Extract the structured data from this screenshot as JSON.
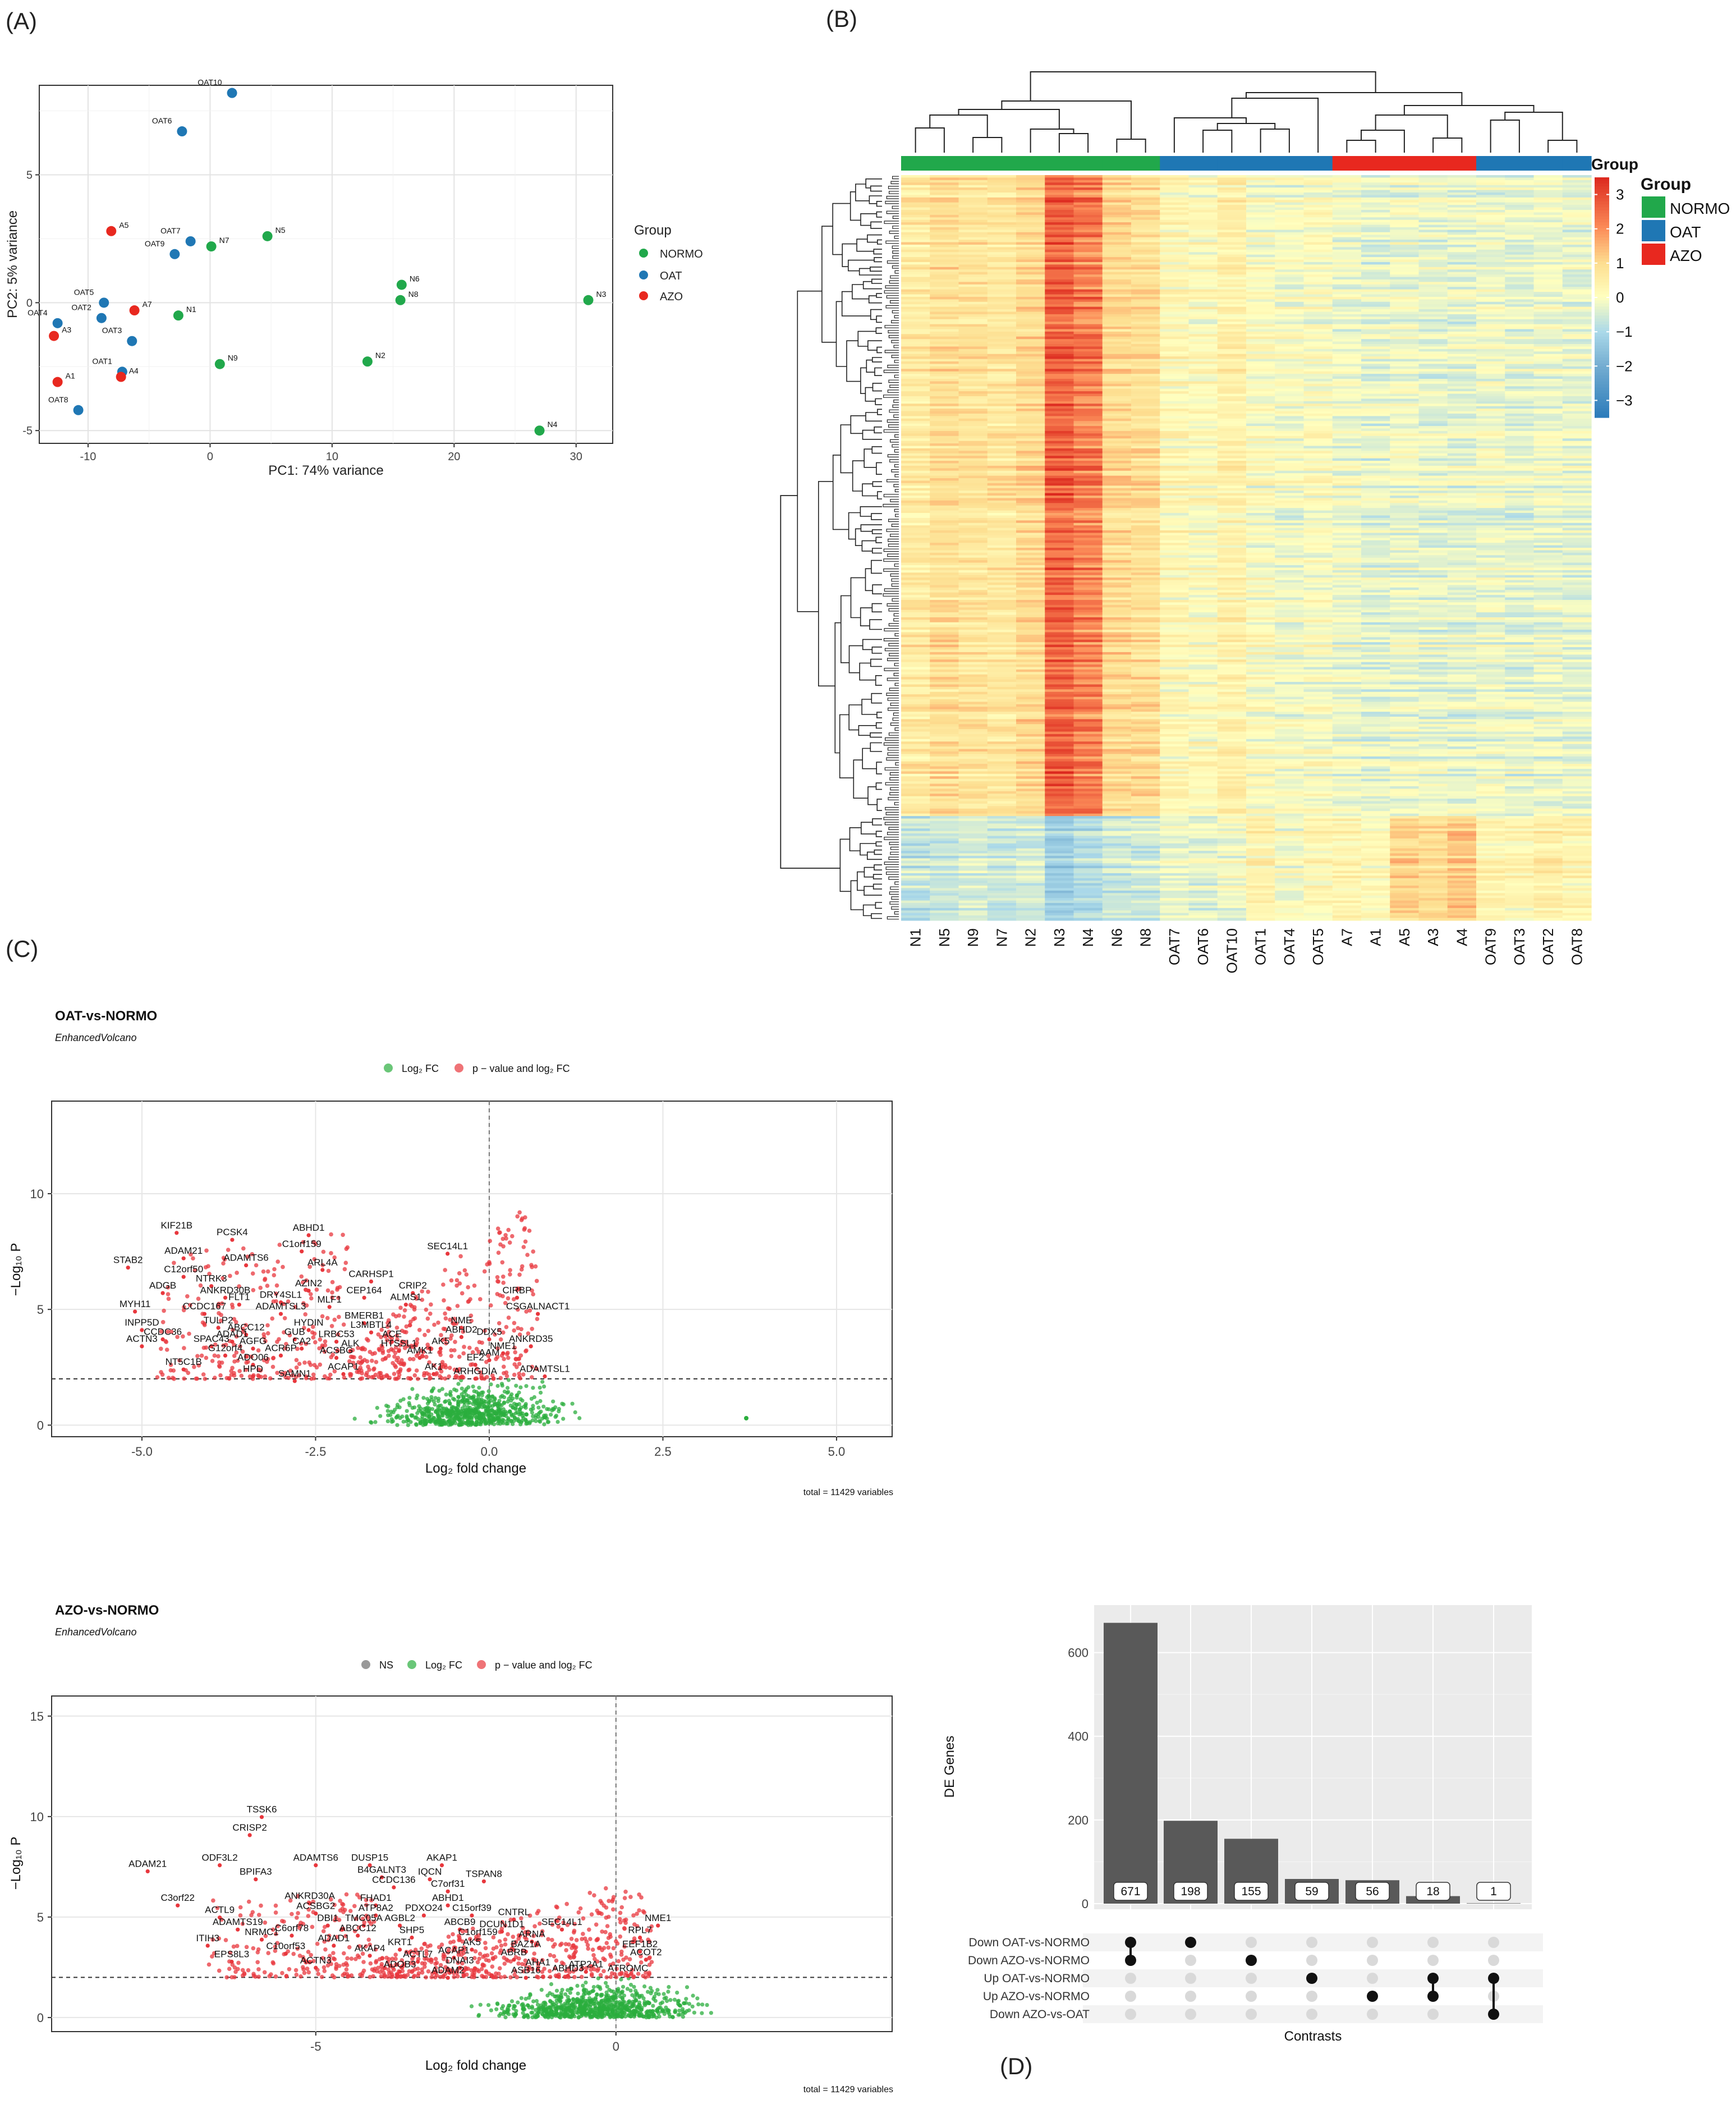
{
  "panel_labels": [
    "(A)",
    "(B)",
    "(C)",
    "(D)"
  ],
  "colors": {
    "normo": "#21A84B",
    "oat": "#1F77B4",
    "azo": "#E8281F",
    "panel_bg": "#FFFFFF",
    "upset_bg": "#EBEBEB",
    "bar": "#595959",
    "ns": "#999999",
    "logfc": "#2BAE3E",
    "pfc": "#E8373D"
  },
  "chart_data": [
    {
      "id": "pca",
      "type": "scatter",
      "xlabel": "PC1: 74% variance",
      "ylabel": "PC2: 5% variance",
      "xlim": [
        -14,
        33
      ],
      "ylim": [
        -5.5,
        8.5
      ],
      "xticks": [
        -10,
        0,
        10,
        20,
        30
      ],
      "yticks": [
        -5,
        0,
        5
      ],
      "legend": {
        "title": "Group",
        "entries": [
          "NORMO",
          "OAT",
          "AZO"
        ],
        "placement": "right"
      },
      "points": [
        {
          "label": "OAT10",
          "x": 1.8,
          "y": 8.2,
          "group": "OAT"
        },
        {
          "label": "OAT6",
          "x": -2.3,
          "y": 6.7,
          "group": "OAT"
        },
        {
          "label": "A5",
          "x": -8.1,
          "y": 2.8,
          "group": "AZO"
        },
        {
          "label": "OAT7",
          "x": -1.6,
          "y": 2.4,
          "group": "OAT"
        },
        {
          "label": "N7",
          "x": 0.1,
          "y": 2.2,
          "group": "NORMO"
        },
        {
          "label": "OAT9",
          "x": -2.9,
          "y": 1.9,
          "group": "OAT"
        },
        {
          "label": "N5",
          "x": 4.7,
          "y": 2.6,
          "group": "NORMO"
        },
        {
          "label": "OAT5",
          "x": -8.7,
          "y": 0.0,
          "group": "OAT"
        },
        {
          "label": "A7",
          "x": -6.2,
          "y": -0.3,
          "group": "AZO"
        },
        {
          "label": "N1",
          "x": -2.6,
          "y": -0.5,
          "group": "NORMO"
        },
        {
          "label": "OAT4",
          "x": -12.5,
          "y": -0.8,
          "group": "OAT"
        },
        {
          "label": "OAT2",
          "x": -8.9,
          "y": -0.6,
          "group": "OAT"
        },
        {
          "label": "A3",
          "x": -12.8,
          "y": -1.3,
          "group": "AZO"
        },
        {
          "label": "OAT3",
          "x": -6.4,
          "y": -1.5,
          "group": "OAT"
        },
        {
          "label": "N9",
          "x": 0.8,
          "y": -2.4,
          "group": "NORMO"
        },
        {
          "label": "OAT1",
          "x": -7.2,
          "y": -2.7,
          "group": "OAT"
        },
        {
          "label": "A4",
          "x": -7.3,
          "y": -2.9,
          "group": "AZO"
        },
        {
          "label": "A1",
          "x": -12.5,
          "y": -3.1,
          "group": "AZO"
        },
        {
          "label": "OAT8",
          "x": -10.8,
          "y": -4.2,
          "group": "OAT"
        },
        {
          "label": "N6",
          "x": 15.7,
          "y": 0.7,
          "group": "NORMO"
        },
        {
          "label": "N8",
          "x": 15.6,
          "y": 0.1,
          "group": "NORMO"
        },
        {
          "label": "N3",
          "x": 31.0,
          "y": 0.1,
          "group": "NORMO"
        },
        {
          "label": "N2",
          "x": 12.9,
          "y": -2.3,
          "group": "NORMO"
        },
        {
          "label": "N4",
          "x": 27.0,
          "y": -5.0,
          "group": "NORMO"
        }
      ]
    },
    {
      "id": "heatmap",
      "type": "heatmap",
      "columns": [
        "N1",
        "N5",
        "N9",
        "N7",
        "N2",
        "N3",
        "N4",
        "N6",
        "N8",
        "OAT7",
        "OAT6",
        "OAT10",
        "OAT1",
        "OAT4",
        "OAT5",
        "A7",
        "A1",
        "A5",
        "A3",
        "A4",
        "OAT9",
        "OAT3",
        "OAT2",
        "OAT8"
      ],
      "column_groups": [
        "NORMO",
        "NORMO",
        "NORMO",
        "NORMO",
        "NORMO",
        "NORMO",
        "NORMO",
        "NORMO",
        "NORMO",
        "OAT",
        "OAT",
        "OAT",
        "OAT",
        "OAT",
        "OAT",
        "AZO",
        "AZO",
        "AZO",
        "AZO",
        "AZO",
        "OAT",
        "OAT",
        "OAT",
        "OAT"
      ],
      "annotation_title": "Group",
      "legend_title": "Group",
      "legend_entries": [
        "NORMO",
        "OAT",
        "AZO"
      ],
      "color_scale": {
        "min": -3.5,
        "max": 3.5,
        "ticks": [
          3,
          2,
          1,
          0,
          -1,
          -2,
          -3
        ]
      },
      "column_mean_z": [
        0.6,
        0.9,
        0.8,
        0.7,
        1.0,
        2.6,
        2.2,
        1.0,
        0.9,
        0.2,
        0.1,
        0.4,
        0.0,
        -0.1,
        0.0,
        -0.2,
        -0.3,
        -0.2,
        -0.3,
        -0.3,
        -0.2,
        -0.3,
        -0.2,
        -0.3
      ],
      "lower_block_z": [
        -0.7,
        -0.6,
        -0.5,
        -0.6,
        -0.5,
        -1.2,
        -0.9,
        -0.6,
        -0.6,
        -0.2,
        -0.3,
        -0.1,
        0.4,
        -0.1,
        0.2,
        0.3,
        0.2,
        1.1,
        1.0,
        1.3,
        0.4,
        0.3,
        0.5,
        0.3
      ]
    },
    {
      "id": "volcano-oat",
      "type": "scatter",
      "title": "OAT-vs-NORMO",
      "subtitle": "EnhancedVolcano",
      "xlabel": "Log₂ fold change",
      "ylabel": "−Log₁₀ P",
      "xlim": [
        -6.3,
        5.8
      ],
      "ylim": [
        -0.5,
        14
      ],
      "xticks": [
        -5.0,
        -2.5,
        0.0,
        2.5,
        5.0
      ],
      "xtick_labels": [
        "-5.0",
        "-2.5",
        "0.0",
        "2.5",
        "5.0"
      ],
      "yticks": [
        0,
        5,
        10
      ],
      "vline": 0,
      "hline": 2,
      "legend": [
        "Log₂ FC",
        "p − value and log₂ FC"
      ],
      "caption": "total = 11429 variables",
      "outlier": {
        "x": 3.7,
        "y": 0.3
      },
      "gene_labels": [
        {
          "t": "KIF21B",
          "x": -4.5,
          "y": 8.5
        },
        {
          "t": "PCSK4",
          "x": -3.7,
          "y": 8.2
        },
        {
          "t": "ABHD1",
          "x": -2.6,
          "y": 8.4
        },
        {
          "t": "C1orf159",
          "x": -2.7,
          "y": 7.7
        },
        {
          "t": "SEC14L1",
          "x": -0.6,
          "y": 7.6
        },
        {
          "t": "ADAM21",
          "x": -4.4,
          "y": 7.4
        },
        {
          "t": "STAB2",
          "x": -5.2,
          "y": 7.0
        },
        {
          "t": "ADAMTS6",
          "x": -3.5,
          "y": 7.1
        },
        {
          "t": "ARL4A",
          "x": -2.4,
          "y": 6.9
        },
        {
          "t": "C12orf50",
          "x": -4.4,
          "y": 6.6
        },
        {
          "t": "CARHSP1",
          "x": -1.7,
          "y": 6.4
        },
        {
          "t": "NTRK3",
          "x": -4.0,
          "y": 6.2
        },
        {
          "t": "AZIN2",
          "x": -2.6,
          "y": 6.0
        },
        {
          "t": "CRIP2",
          "x": -1.1,
          "y": 5.9
        },
        {
          "t": "CIRBP",
          "x": 0.4,
          "y": 5.7
        },
        {
          "t": "ADGB",
          "x": -4.7,
          "y": 5.9
        },
        {
          "t": "ANKRD30B",
          "x": -3.8,
          "y": 5.7
        },
        {
          "t": "CEP164",
          "x": -1.8,
          "y": 5.7
        },
        {
          "t": "DRY4SL1",
          "x": -3.0,
          "y": 5.5
        },
        {
          "t": "FLT1",
          "x": -3.6,
          "y": 5.4
        },
        {
          "t": "MLF1",
          "x": -2.3,
          "y": 5.3
        },
        {
          "t": "ALMS1",
          "x": -1.2,
          "y": 5.4
        },
        {
          "t": "CSGALNACT1",
          "x": 0.7,
          "y": 5.0
        },
        {
          "t": "MYH11",
          "x": -5.1,
          "y": 5.1
        },
        {
          "t": "CCDC167",
          "x": -4.1,
          "y": 5.0
        },
        {
          "t": "ADAMTSL3",
          "x": -3.0,
          "y": 5.0
        },
        {
          "t": "BMERB1",
          "x": -1.8,
          "y": 4.6
        },
        {
          "t": "NME",
          "x": -0.4,
          "y": 4.4
        },
        {
          "t": "INPP5D",
          "x": -5.0,
          "y": 4.3
        },
        {
          "t": "TULP2",
          "x": -3.9,
          "y": 4.4
        },
        {
          "t": "HYDIN",
          "x": -2.6,
          "y": 4.3
        },
        {
          "t": "L3MBTL4",
          "x": -1.7,
          "y": 4.2
        },
        {
          "t": "ABHD2",
          "x": -0.4,
          "y": 4.0
        },
        {
          "t": "DDX5",
          "x": 0.0,
          "y": 3.9
        },
        {
          "t": "ANKRD35",
          "x": 0.6,
          "y": 3.6
        },
        {
          "t": "CCDC36",
          "x": -4.7,
          "y": 3.9
        },
        {
          "t": "ABCC12",
          "x": -3.5,
          "y": 4.1
        },
        {
          "t": "ADAD1",
          "x": -3.7,
          "y": 3.8
        },
        {
          "t": "GUB",
          "x": -2.8,
          "y": 3.9
        },
        {
          "t": "LRBC53",
          "x": -2.2,
          "y": 3.8
        },
        {
          "t": "ACE",
          "x": -1.4,
          "y": 3.8
        },
        {
          "t": "ACTN3",
          "x": -5.0,
          "y": 3.6
        },
        {
          "t": "SPAC43",
          "x": -4.0,
          "y": 3.6
        },
        {
          "t": "AGFG",
          "x": -3.4,
          "y": 3.5
        },
        {
          "t": "CA2",
          "x": -2.7,
          "y": 3.5
        },
        {
          "t": "ALK",
          "x": -2.0,
          "y": 3.4
        },
        {
          "t": "HTSSL1",
          "x": -1.3,
          "y": 3.4
        },
        {
          "t": "AK5",
          "x": -0.7,
          "y": 3.5
        },
        {
          "t": "NME1",
          "x": 0.2,
          "y": 3.3
        },
        {
          "t": "G12orf4",
          "x": -3.8,
          "y": 3.2
        },
        {
          "t": "ACR6P",
          "x": -3.0,
          "y": 3.2
        },
        {
          "t": "ACSBG",
          "x": -2.2,
          "y": 3.1
        },
        {
          "t": "AMK1",
          "x": -1.0,
          "y": 3.1
        },
        {
          "t": "AAM",
          "x": 0.0,
          "y": 3.0
        },
        {
          "t": "NT5C1B",
          "x": -4.4,
          "y": 2.6
        },
        {
          "t": "ADO06",
          "x": -3.4,
          "y": 2.8
        },
        {
          "t": "ACAP1",
          "x": -2.1,
          "y": 2.4
        },
        {
          "t": "EF2",
          "x": -0.2,
          "y": 2.8
        },
        {
          "t": "HPD",
          "x": -3.4,
          "y": 2.3
        },
        {
          "t": "SAMN1",
          "x": -2.8,
          "y": 2.1
        },
        {
          "t": "AK1",
          "x": -0.8,
          "y": 2.4
        },
        {
          "t": "ARHGDIA",
          "x": -0.2,
          "y": 2.2
        },
        {
          "t": "ADAMTSL1",
          "x": 0.8,
          "y": 2.3
        }
      ]
    },
    {
      "id": "volcano-azo",
      "type": "scatter",
      "title": "AZO-vs-NORMO",
      "subtitle": "EnhancedVolcano",
      "xlabel": "Log₂ fold change",
      "ylabel": "−Log₁₀ P",
      "xlim": [
        -9.4,
        4.6
      ],
      "ylim": [
        -0.7,
        16
      ],
      "xticks": [
        -5,
        0
      ],
      "xtick_labels": [
        "-5",
        "0"
      ],
      "yticks": [
        0,
        5,
        10,
        15
      ],
      "vline": 0,
      "hline": 2,
      "legend": [
        "NS",
        "Log₂ FC",
        "p − value and log₂ FC"
      ],
      "caption": "total = 11429 variables",
      "gene_labels": [
        {
          "t": "TSSK6",
          "x": -5.9,
          "y": 10.2
        },
        {
          "t": "CRISP2",
          "x": -6.1,
          "y": 9.3
        },
        {
          "t": "ODF3L2",
          "x": -6.6,
          "y": 7.8
        },
        {
          "t": "ADAM21",
          "x": -7.8,
          "y": 7.5
        },
        {
          "t": "ADAMTS6",
          "x": -5.0,
          "y": 7.8
        },
        {
          "t": "DUSP15",
          "x": -4.1,
          "y": 7.8
        },
        {
          "t": "AKAP1",
          "x": -2.9,
          "y": 7.8
        },
        {
          "t": "BPIFA3",
          "x": -6.0,
          "y": 7.1
        },
        {
          "t": "B4GALNT3",
          "x": -3.9,
          "y": 7.2
        },
        {
          "t": "IQCN",
          "x": -3.1,
          "y": 7.1
        },
        {
          "t": "TSPAN8",
          "x": -2.2,
          "y": 7.0
        },
        {
          "t": "CCDC136",
          "x": -3.7,
          "y": 6.7
        },
        {
          "t": "C7orf31",
          "x": -2.8,
          "y": 6.5
        },
        {
          "t": "ANKRD30A",
          "x": -5.1,
          "y": 5.9
        },
        {
          "t": "FHAD1",
          "x": -4.0,
          "y": 5.8
        },
        {
          "t": "ABHD1",
          "x": -2.8,
          "y": 5.8
        },
        {
          "t": "C3orf22",
          "x": -7.3,
          "y": 5.8
        },
        {
          "t": "ACSBG2",
          "x": -5.0,
          "y": 5.4
        },
        {
          "t": "ATP8A2",
          "x": -4.0,
          "y": 5.3
        },
        {
          "t": "PDXO24",
          "x": -3.2,
          "y": 5.3
        },
        {
          "t": "C15orf39",
          "x": -2.4,
          "y": 5.3
        },
        {
          "t": "CNTRL",
          "x": -1.7,
          "y": 5.1
        },
        {
          "t": "ACTL9",
          "x": -6.6,
          "y": 5.2
        },
        {
          "t": "DBI1",
          "x": -4.8,
          "y": 4.8
        },
        {
          "t": "TMC05A",
          "x": -4.2,
          "y": 4.8
        },
        {
          "t": "AGBL2",
          "x": -3.6,
          "y": 4.8
        },
        {
          "t": "ABCB9",
          "x": -2.6,
          "y": 4.6
        },
        {
          "t": "DCUN1D1",
          "x": -1.9,
          "y": 4.5
        },
        {
          "t": "SEC14L1",
          "x": -0.9,
          "y": 4.6
        },
        {
          "t": "NME1",
          "x": 0.7,
          "y": 4.8
        },
        {
          "t": "ADAMTS19",
          "x": -6.3,
          "y": 4.6
        },
        {
          "t": "C6orf78",
          "x": -5.4,
          "y": 4.3
        },
        {
          "t": "ABCC12",
          "x": -4.3,
          "y": 4.3
        },
        {
          "t": "SHP5",
          "x": -3.4,
          "y": 4.2
        },
        {
          "t": "C1orf159",
          "x": -2.3,
          "y": 4.1
        },
        {
          "t": "ARNA",
          "x": -1.4,
          "y": 4.0
        },
        {
          "t": "RPL7",
          "x": 0.4,
          "y": 4.2
        },
        {
          "t": "ITIH3",
          "x": -6.8,
          "y": 3.8
        },
        {
          "t": "NRMC1",
          "x": -5.9,
          "y": 4.1
        },
        {
          "t": "ADAD1",
          "x": -4.7,
          "y": 3.8
        },
        {
          "t": "KRT1",
          "x": -3.6,
          "y": 3.6
        },
        {
          "t": "AK5",
          "x": -2.4,
          "y": 3.6
        },
        {
          "t": "BAZ1A",
          "x": -1.5,
          "y": 3.5
        },
        {
          "t": "EEF1B2",
          "x": 0.4,
          "y": 3.5
        },
        {
          "t": "C10orf53",
          "x": -5.5,
          "y": 3.4
        },
        {
          "t": "AKAP4",
          "x": -4.1,
          "y": 3.3
        },
        {
          "t": "ACTL7",
          "x": -3.3,
          "y": 3.0
        },
        {
          "t": "ACAP1",
          "x": -2.7,
          "y": 3.2
        },
        {
          "t": "ABRB",
          "x": -1.7,
          "y": 3.1
        },
        {
          "t": "ACOT2",
          "x": 0.5,
          "y": 3.1
        },
        {
          "t": "EPS8L3",
          "x": -6.4,
          "y": 3.0
        },
        {
          "t": "ACTN3",
          "x": -5.0,
          "y": 2.7
        },
        {
          "t": "ADOB3",
          "x": -3.6,
          "y": 2.5
        },
        {
          "t": "DNAI3",
          "x": -2.6,
          "y": 2.7
        },
        {
          "t": "ADAM2",
          "x": -2.8,
          "y": 2.2
        },
        {
          "t": "AHA1",
          "x": -1.3,
          "y": 2.6
        },
        {
          "t": "ATP2A1",
          "x": -0.5,
          "y": 2.5
        },
        {
          "t": "ATROMC",
          "x": 0.2,
          "y": 2.3
        },
        {
          "t": "ASB16",
          "x": -1.5,
          "y": 2.2
        },
        {
          "t": "ABHD3",
          "x": -0.8,
          "y": 2.3
        }
      ]
    },
    {
      "id": "upset",
      "type": "bar",
      "ylabel": "DE Genes",
      "xlabel": "Contrasts",
      "ylim": [
        0,
        700
      ],
      "yticks": [
        0,
        200,
        400,
        600
      ],
      "values": [
        671,
        198,
        155,
        59,
        56,
        18,
        1
      ],
      "sets": [
        "Down OAT-vs-NORMO",
        "Down AZO-vs-NORMO",
        "Up OAT-vs-NORMO",
        "Up AZO-vs-NORMO",
        "Down AZO-vs-OAT"
      ],
      "intersections": [
        [
          0,
          1
        ],
        [
          0
        ],
        [
          1
        ],
        [
          2
        ],
        [
          3
        ],
        [
          2,
          3
        ],
        [
          2,
          4
        ]
      ]
    }
  ]
}
